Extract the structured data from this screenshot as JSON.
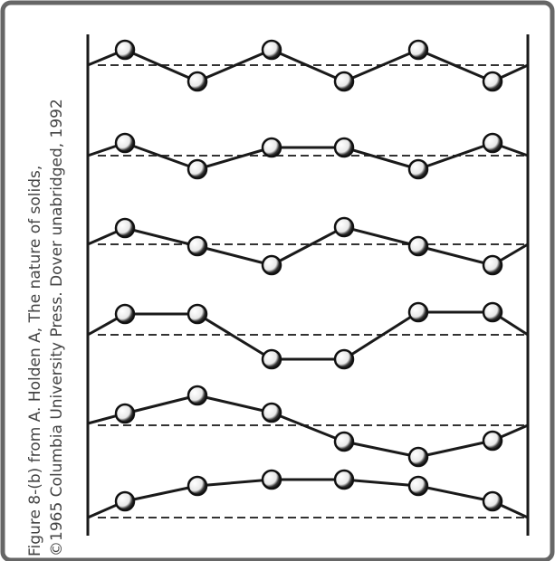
{
  "caption": [
    "Figure 8-(b) from A. Holden A, The nature of solids,",
    "©1965 Columbia  University Press.  Dover unabridged, 1992"
  ]
}
